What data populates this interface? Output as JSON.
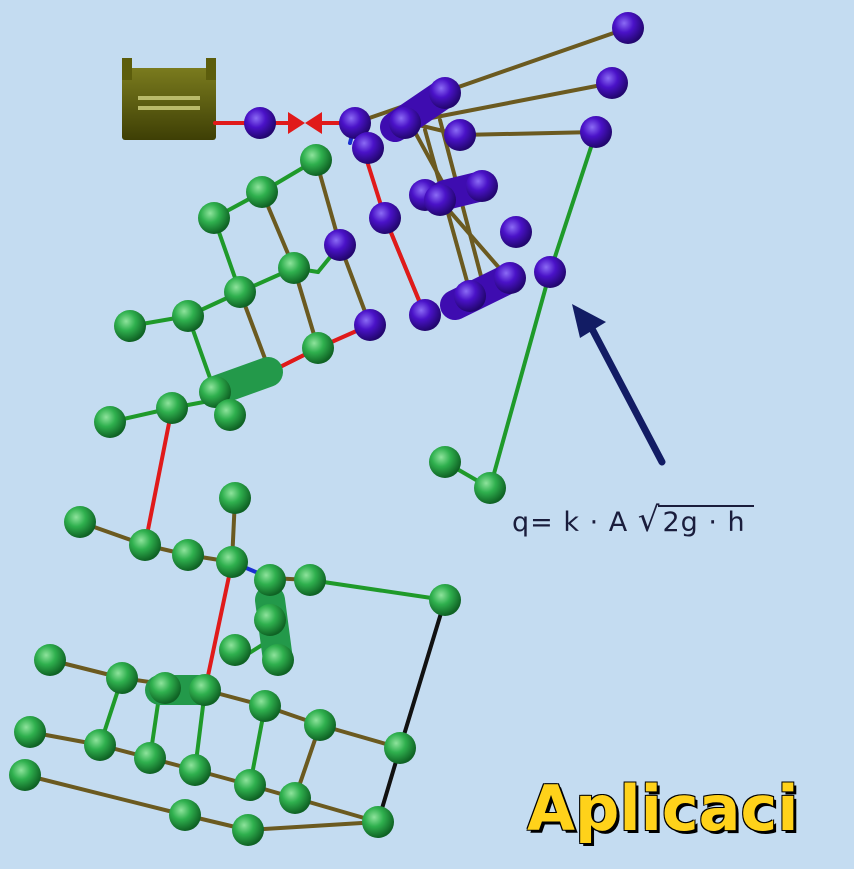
{
  "formula": {
    "left": "q= k · A",
    "radical": "√",
    "radicand": "2g · h"
  },
  "title": "Aplicaci",
  "colors": {
    "background": "#c4dcf1",
    "demand_node": "#2aa84a",
    "supply_node": "#4a12c8",
    "pipe_standard": "#6b5a20",
    "pipe_green": "#1f9a2a",
    "pipe_red": "#e01a1a",
    "pipe_black": "#111111",
    "tank": "#5c5d0c",
    "valve": "#e01a1a",
    "arrow": "#121c64",
    "title": "#ffd21a"
  },
  "icons": [
    "reservoir-tank-icon",
    "valve-icon"
  ]
}
